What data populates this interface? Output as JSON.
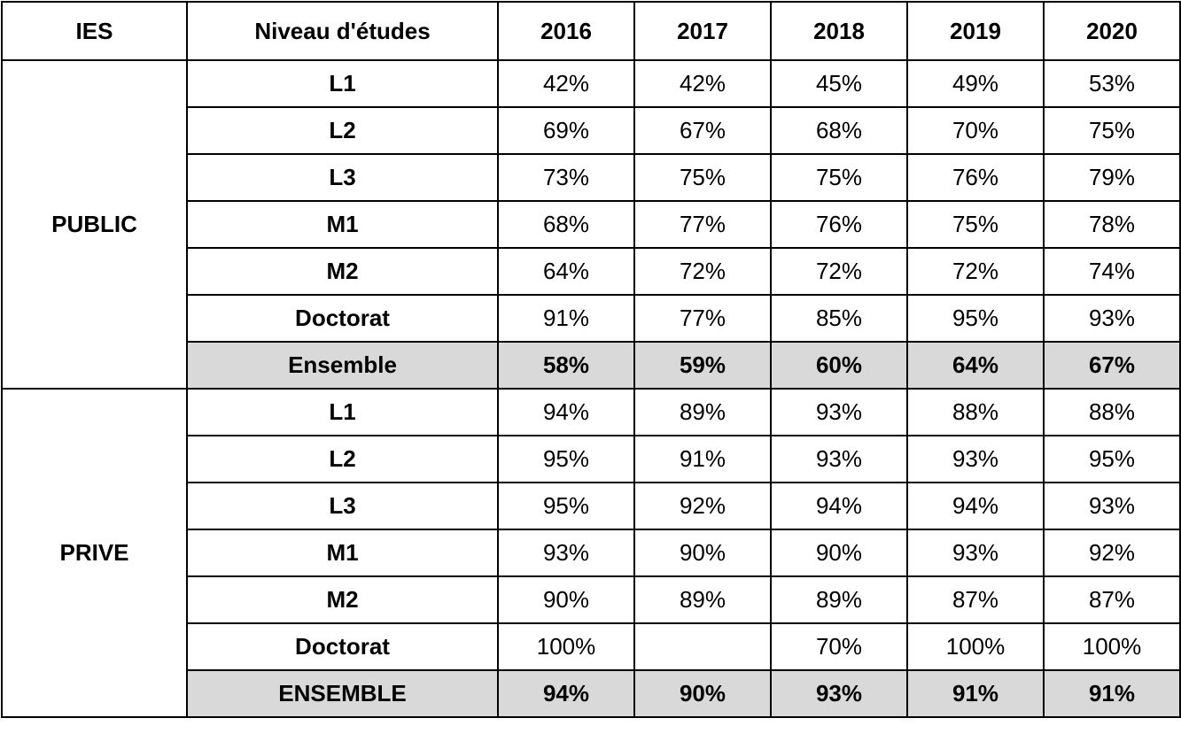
{
  "table": {
    "headers": [
      "IES",
      "Niveau d'études",
      "2016",
      "2017",
      "2018",
      "2019",
      "2020"
    ],
    "groups": [
      {
        "name": "PUBLIC",
        "rows": [
          {
            "level": "L1",
            "values": [
              "42%",
              "42%",
              "45%",
              "49%",
              "53%"
            ],
            "total": false
          },
          {
            "level": "L2",
            "values": [
              "69%",
              "67%",
              "68%",
              "70%",
              "75%"
            ],
            "total": false
          },
          {
            "level": "L3",
            "values": [
              "73%",
              "75%",
              "75%",
              "76%",
              "79%"
            ],
            "total": false
          },
          {
            "level": "M1",
            "values": [
              "68%",
              "77%",
              "76%",
              "75%",
              "78%"
            ],
            "total": false
          },
          {
            "level": "M2",
            "values": [
              "64%",
              "72%",
              "72%",
              "72%",
              "74%"
            ],
            "total": false
          },
          {
            "level": "Doctorat",
            "values": [
              "91%",
              "77%",
              "85%",
              "95%",
              "93%"
            ],
            "total": false
          },
          {
            "level": "Ensemble",
            "values": [
              "58%",
              "59%",
              "60%",
              "64%",
              "67%"
            ],
            "total": true
          }
        ]
      },
      {
        "name": "PRIVE",
        "rows": [
          {
            "level": "L1",
            "values": [
              "94%",
              "89%",
              "93%",
              "88%",
              "88%"
            ],
            "total": false
          },
          {
            "level": "L2",
            "values": [
              "95%",
              "91%",
              "93%",
              "93%",
              "95%"
            ],
            "total": false
          },
          {
            "level": "L3",
            "values": [
              "95%",
              "92%",
              "94%",
              "94%",
              "93%"
            ],
            "total": false
          },
          {
            "level": "M1",
            "values": [
              "93%",
              "90%",
              "90%",
              "93%",
              "92%"
            ],
            "total": false
          },
          {
            "level": "M2",
            "values": [
              "90%",
              "89%",
              "89%",
              "87%",
              "87%"
            ],
            "total": false
          },
          {
            "level": "Doctorat",
            "values": [
              "100%",
              "",
              "70%",
              "100%",
              "100%"
            ],
            "total": false
          },
          {
            "level": "ENSEMBLE",
            "values": [
              "94%",
              "90%",
              "93%",
              "91%",
              "91%"
            ],
            "total": true
          }
        ]
      }
    ],
    "colors": {
      "border": "#000000",
      "total_row_background": "#d9d9d9"
    }
  }
}
